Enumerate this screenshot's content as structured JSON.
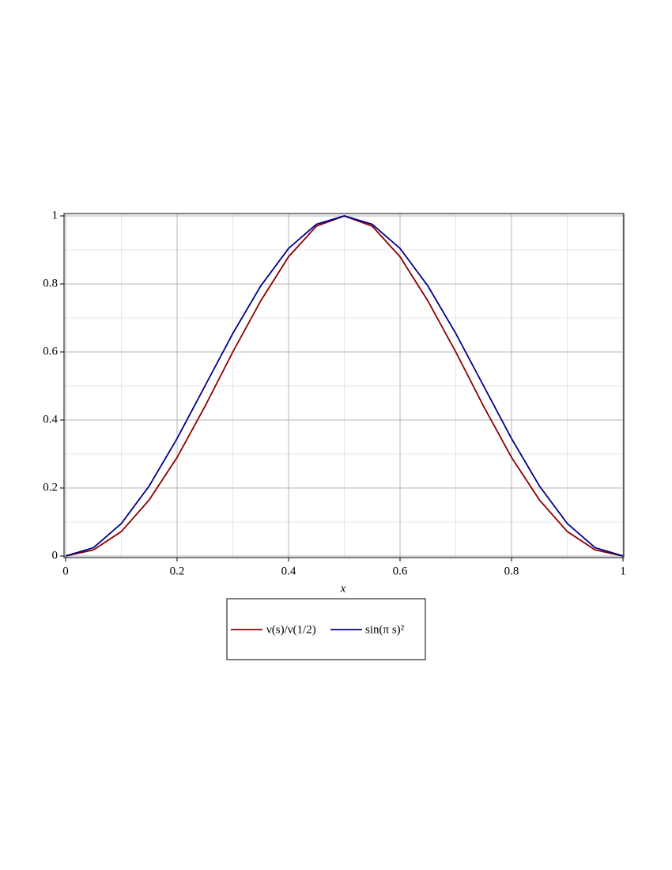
{
  "chart_data": {
    "type": "line",
    "x_label": "x",
    "x": [
      0,
      0.05,
      0.1,
      0.15,
      0.2,
      0.25,
      0.3,
      0.35,
      0.4,
      0.45,
      0.5,
      0.55,
      0.6,
      0.65,
      0.7,
      0.75,
      0.8,
      0.85,
      0.9,
      0.95,
      1
    ],
    "series": [
      {
        "name": "ν(s)/ν(1/2)",
        "color": "#8b0000",
        "values": [
          0,
          0.018,
          0.072,
          0.165,
          0.29,
          0.44,
          0.6,
          0.75,
          0.88,
          0.97,
          1,
          0.97,
          0.88,
          0.75,
          0.6,
          0.44,
          0.29,
          0.165,
          0.072,
          0.018,
          0
        ]
      },
      {
        "name": "sin(π s)²",
        "color": "#00008b",
        "values": [
          0,
          0.0245,
          0.0955,
          0.2061,
          0.3455,
          0.5,
          0.6545,
          0.7939,
          0.9045,
          0.9755,
          1,
          0.9755,
          0.9045,
          0.7939,
          0.6545,
          0.5,
          0.3455,
          0.2061,
          0.0955,
          0.0245,
          0
        ]
      }
    ],
    "xlim": [
      0,
      1
    ],
    "ylim": [
      0,
      1
    ],
    "xticks": [
      0,
      0.2,
      0.4,
      0.6,
      0.8,
      1
    ],
    "yticks": [
      0,
      0.2,
      0.4,
      0.6,
      0.8,
      1
    ],
    "x_minor": [
      0.1,
      0.3,
      0.5,
      0.7,
      0.9
    ],
    "y_minor": [
      0.1,
      0.3,
      0.5,
      0.7,
      0.9
    ],
    "grid": true
  }
}
